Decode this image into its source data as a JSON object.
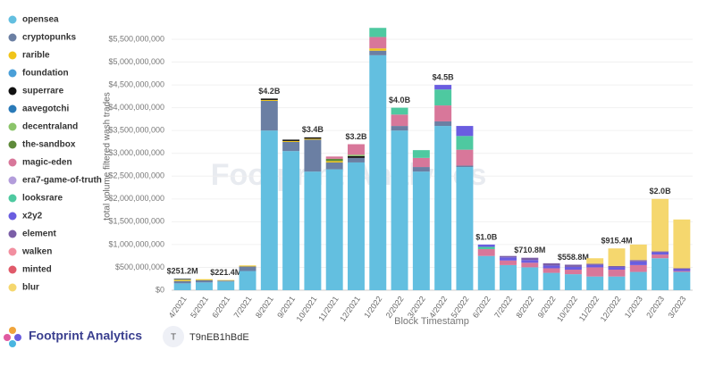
{
  "chart_data": {
    "type": "stacked_bar",
    "y_label": "total volume filtered wash trades",
    "x_label": "Block Timestamp",
    "watermark": "Footprint Analytics",
    "brand": "Footprint Analytics",
    "user_initial": "T",
    "user_id": "T9nEB1hBdE",
    "categories": [
      "4/2021",
      "5/2021",
      "6/2021",
      "7/2021",
      "8/2021",
      "9/2021",
      "10/2021",
      "11/2021",
      "12/2021",
      "1/2022",
      "2/2022",
      "3/2022",
      "4/2022",
      "5/2022",
      "6/2022",
      "7/2022",
      "8/2022",
      "9/2022",
      "10/2022",
      "11/2022",
      "12/2022",
      "1/2023",
      "2/2023",
      "3/2023"
    ],
    "ylim": [
      0,
      5500000000
    ],
    "yticks": [
      {
        "value": 0,
        "label": "$0"
      },
      {
        "value": 500000000,
        "label": "$500,000,000"
      },
      {
        "value": 1000000000,
        "label": "$1,000,000,000"
      },
      {
        "value": 1500000000,
        "label": "$1,500,000,000"
      },
      {
        "value": 2000000000,
        "label": "$2,000,000,000"
      },
      {
        "value": 2500000000,
        "label": "$2,500,000,000"
      },
      {
        "value": 3000000000,
        "label": "$3,000,000,000"
      },
      {
        "value": 3500000000,
        "label": "$3,500,000,000"
      },
      {
        "value": 4000000000,
        "label": "$4,000,000,000"
      },
      {
        "value": 4500000000,
        "label": "$4,500,000,000"
      },
      {
        "value": 5000000000,
        "label": "$5,000,000,000"
      },
      {
        "value": 5500000000,
        "label": "$5,500,000,000"
      }
    ],
    "total_labels": [
      "$251.2M",
      null,
      "$221.4M",
      null,
      "$4.2B",
      null,
      "$3.4B",
      null,
      "$3.2B",
      null,
      "$4.0B",
      null,
      "$4.5B",
      null,
      "$1.0B",
      null,
      "$710.8M",
      null,
      "$558.8M",
      null,
      "$915.4M",
      null,
      "$2.0B",
      null
    ],
    "series": [
      {
        "name": "opensea",
        "color": "#63bfe0",
        "values": [
          150000000.0,
          170000000.0,
          190000000.0,
          420000000.0,
          3500000000.0,
          3050000000.0,
          2600000000.0,
          2650000000.0,
          2800000000.0,
          5150000000.0,
          3500000000.0,
          2600000000.0,
          3600000000.0,
          2700000000.0,
          750000000.0,
          550000000.0,
          500800000.0,
          380000000.0,
          350000000.0,
          300000000.0,
          300000000.0,
          400000000.0,
          700000000.0,
          400000000.0
        ]
      },
      {
        "name": "cryptopunks",
        "color": "#6b7fa3",
        "values": [
          50000000.0,
          50000000.0,
          20000000.0,
          100000000.0,
          650000000.0,
          200000000.0,
          700000000.0,
          150000000.0,
          100000000.0,
          100000000.0,
          100000000.0,
          100000000.0,
          100000000.0,
          30000000.0,
          0,
          0,
          0,
          0,
          0,
          0,
          0,
          0,
          0,
          0
        ]
      },
      {
        "name": "rarible",
        "color": "#f0c419",
        "values": [
          30000000.0,
          20000000.0,
          11400000.0,
          20000000.0,
          20000000.0,
          20000000.0,
          20000000.0,
          30000000.0,
          0,
          50000000.0,
          0,
          0,
          0,
          0,
          0,
          0,
          0,
          0,
          0,
          0,
          0,
          0,
          0,
          0
        ]
      },
      {
        "name": "foundation",
        "color": "#4a9fd8",
        "values": [
          10000000.0,
          0,
          0,
          0,
          0,
          0,
          0,
          0,
          0,
          0,
          0,
          0,
          0,
          0,
          0,
          0,
          0,
          0,
          0,
          0,
          0,
          0,
          0,
          0
        ]
      },
      {
        "name": "superrare",
        "color": "#111111",
        "values": [
          11200000.0,
          0,
          0,
          0,
          30000000.0,
          30000000.0,
          30000000.0,
          0,
          40000000.0,
          0,
          0,
          0,
          0,
          0,
          0,
          0,
          0,
          0,
          0,
          0,
          0,
          0,
          0,
          0
        ]
      },
      {
        "name": "aavegotchi",
        "color": "#2a7ab8",
        "values": [
          0,
          0,
          0,
          0,
          0,
          0,
          0,
          0,
          0,
          0,
          0,
          0,
          0,
          0,
          0,
          0,
          0,
          0,
          0,
          0,
          0,
          0,
          0,
          0
        ]
      },
      {
        "name": "decentraland",
        "color": "#8bc46a",
        "values": [
          0,
          0,
          0,
          0,
          0,
          0,
          0,
          0,
          30000000.0,
          0,
          0,
          0,
          0,
          0,
          0,
          0,
          0,
          0,
          0,
          0,
          0,
          0,
          0,
          0
        ]
      },
      {
        "name": "the-sandbox",
        "color": "#5e8a3a",
        "values": [
          0,
          0,
          0,
          0,
          0,
          0,
          0,
          50000000.0,
          0,
          0,
          0,
          0,
          0,
          0,
          0,
          0,
          0,
          0,
          0,
          0,
          0,
          0,
          0,
          0
        ]
      },
      {
        "name": "magic-eden",
        "color": "#d8779a",
        "values": [
          0,
          0,
          0,
          0,
          0,
          0,
          0,
          50000000.0,
          230000000.0,
          250000000.0,
          250000000.0,
          200000000.0,
          350000000.0,
          350000000.0,
          150000000.0,
          100000000.0,
          100000000.0,
          100000000.0,
          100000000.0,
          200000000.0,
          150000000.0,
          150000000.0,
          80000000.0,
          20000000.0
        ]
      },
      {
        "name": "era7-game-of-truth",
        "color": "#b39ddb",
        "values": [
          0,
          0,
          0,
          0,
          0,
          0,
          0,
          0,
          0,
          0,
          0,
          0,
          0,
          0,
          0,
          0,
          0,
          0,
          0,
          0,
          0,
          0,
          0,
          0
        ]
      },
      {
        "name": "looksrare",
        "color": "#4ec9a0",
        "values": [
          0,
          0,
          0,
          0,
          0,
          0,
          0,
          0,
          0,
          200000000.0,
          150000000.0,
          170000000.0,
          350000000.0,
          300000000.0,
          50000000.0,
          0,
          0,
          0,
          0,
          0,
          0,
          0,
          0,
          0
        ]
      },
      {
        "name": "x2y2",
        "color": "#6a5de0",
        "values": [
          0,
          0,
          0,
          0,
          0,
          0,
          0,
          0,
          0,
          0,
          0,
          0,
          100000000.0,
          220000000.0,
          50000000.0,
          70000000.0,
          60000000.0,
          60000000.0,
          60000000.0,
          50000000.0,
          50000000.0,
          80000000.0,
          50000000.0,
          40000000.0
        ]
      },
      {
        "name": "element",
        "color": "#7b5ea7",
        "values": [
          0,
          0,
          0,
          0,
          0,
          0,
          0,
          0,
          0,
          0,
          0,
          0,
          0,
          0,
          0,
          30000000.0,
          50000000.0,
          50000000.0,
          48800000.0,
          30000000.0,
          30000000.0,
          30000000.0,
          20000000.0,
          20000000.0
        ]
      },
      {
        "name": "walken",
        "color": "#f28fa0",
        "values": [
          0,
          0,
          0,
          0,
          0,
          0,
          0,
          0,
          0,
          0,
          0,
          0,
          0,
          0,
          0,
          0,
          0,
          0,
          0,
          0,
          0,
          0,
          0,
          0
        ]
      },
      {
        "name": "minted",
        "color": "#e05a6a",
        "values": [
          0,
          0,
          0,
          0,
          0,
          0,
          0,
          0,
          0,
          0,
          0,
          0,
          0,
          0,
          0,
          0,
          0,
          0,
          0,
          0,
          0,
          0,
          0,
          0
        ]
      },
      {
        "name": "blur",
        "color": "#f5d76e",
        "values": [
          0,
          0,
          0,
          0,
          0,
          0,
          0,
          0,
          0,
          0,
          0,
          0,
          0,
          0,
          0,
          0,
          0,
          0,
          0,
          120000000.0,
          385400000.0,
          340000000.0,
          1150000000.0,
          1070000000.0
        ]
      }
    ]
  }
}
